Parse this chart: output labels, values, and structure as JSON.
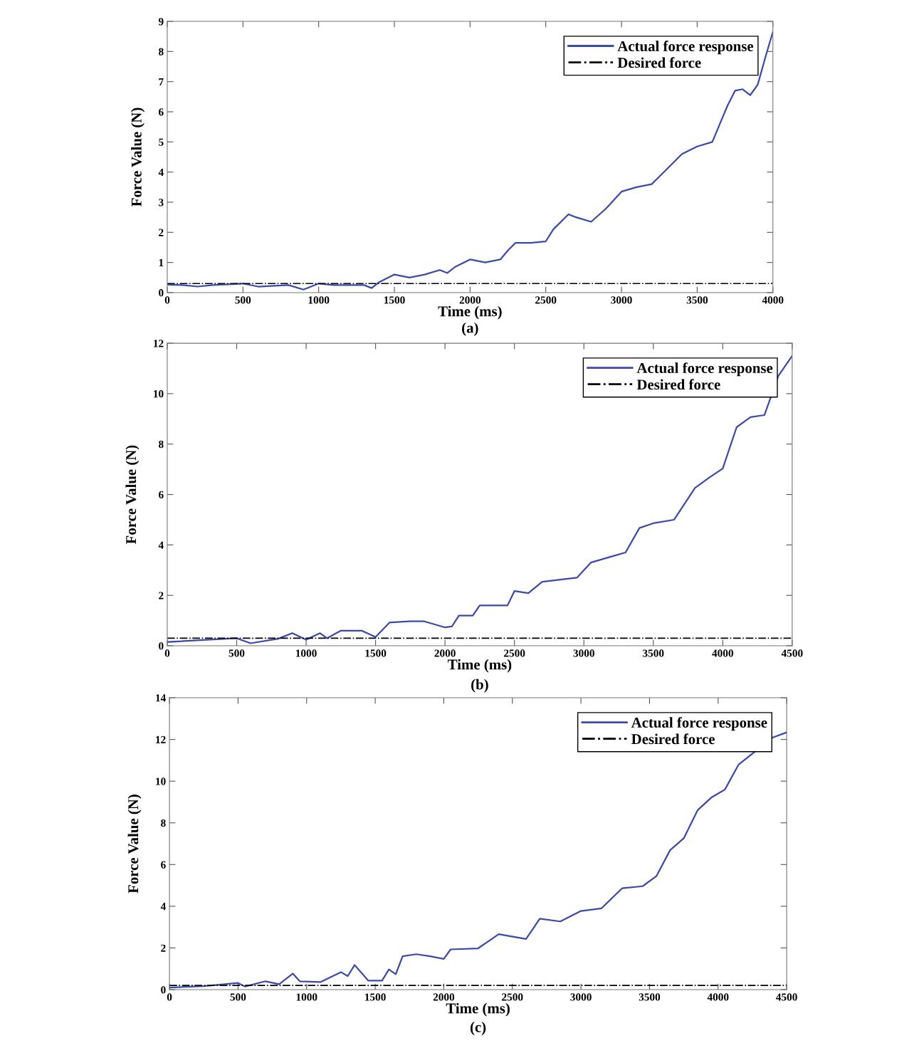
{
  "chart_data": [
    {
      "type": "line",
      "xlabel": "Time (ms)",
      "ylabel": "Force Value (N)",
      "annotations": [
        "(a)"
      ],
      "xlim": [
        0,
        4000
      ],
      "xticks": [
        0,
        500,
        1000,
        1500,
        2000,
        2500,
        3000,
        3500,
        4000
      ],
      "ylim": [
        0,
        9
      ],
      "yticks": [
        0,
        1,
        2,
        3,
        4,
        5,
        6,
        7,
        8,
        9
      ],
      "legend": "top right",
      "grid": false,
      "series": [
        {
          "name": "Actual force response",
          "color": "#3a4aa8",
          "line_style": "solid",
          "x": [
            0,
            100,
            200,
            300,
            500,
            600,
            800,
            900,
            1000,
            1100,
            1300,
            1350,
            1400,
            1500,
            1600,
            1700,
            1800,
            1850,
            1900,
            2000,
            2100,
            2200,
            2250,
            2300,
            2400,
            2500,
            2550,
            2650,
            2700,
            2800,
            2900,
            3000,
            3100,
            3200,
            3300,
            3400,
            3500,
            3600,
            3650,
            3700,
            3750,
            3800,
            3850,
            3900,
            3950,
            4000
          ],
          "values": [
            0.26,
            0.25,
            0.2,
            0.25,
            0.3,
            0.2,
            0.25,
            0.1,
            0.3,
            0.25,
            0.25,
            0.15,
            0.35,
            0.6,
            0.5,
            0.6,
            0.75,
            0.65,
            0.85,
            1.1,
            1.0,
            1.1,
            1.4,
            1.65,
            1.65,
            1.7,
            2.1,
            2.6,
            2.5,
            2.35,
            2.8,
            3.35,
            3.5,
            3.6,
            4.1,
            4.6,
            4.85,
            5.0,
            5.6,
            6.2,
            6.7,
            6.75,
            6.55,
            6.9,
            7.8,
            8.65
          ]
        },
        {
          "name": "Desired force",
          "color": "#000000",
          "line_style": "dashdot",
          "x": [
            0,
            4000
          ],
          "values": [
            0.3,
            0.3
          ]
        }
      ]
    },
    {
      "type": "line",
      "xlabel": "Time (ms)",
      "ylabel": "Force Value (N)",
      "annotations": [
        "(b)"
      ],
      "xlim": [
        0,
        4500
      ],
      "xticks": [
        0,
        500,
        1000,
        1500,
        2000,
        2500,
        3000,
        3500,
        4000,
        4500
      ],
      "ylim": [
        0,
        12
      ],
      "yticks": [
        0,
        2,
        4,
        6,
        8,
        10,
        12
      ],
      "legend": "top right",
      "grid": false,
      "series": [
        {
          "name": "Actual force response",
          "color": "#3a4aa8",
          "line_style": "solid",
          "x": [
            0,
            500,
            600,
            800,
            900,
            1000,
            1100,
            1150,
            1250,
            1400,
            1500,
            1600,
            1750,
            1850,
            2000,
            2050,
            2100,
            2200,
            2250,
            2450,
            2500,
            2600,
            2700,
            2950,
            3050,
            3200,
            3300,
            3400,
            3500,
            3650,
            3800,
            3900,
            4000,
            4100,
            4200,
            4300,
            4400,
            4500
          ],
          "values": [
            0.15,
            0.3,
            0.1,
            0.28,
            0.5,
            0.24,
            0.5,
            0.3,
            0.6,
            0.6,
            0.35,
            0.92,
            0.97,
            0.97,
            0.73,
            0.77,
            1.2,
            1.2,
            1.6,
            1.6,
            2.17,
            2.09,
            2.54,
            2.7,
            3.3,
            3.54,
            3.7,
            4.67,
            4.86,
            5.0,
            6.26,
            6.66,
            7.03,
            8.67,
            9.07,
            9.15,
            10.7,
            11.5
          ]
        },
        {
          "name": "Desired force",
          "color": "#000000",
          "line_style": "dashdot",
          "x": [
            0,
            4500
          ],
          "values": [
            0.3,
            0.3
          ]
        }
      ]
    },
    {
      "type": "line",
      "xlabel": "Time (ms)",
      "ylabel": "Force Value (N)",
      "annotations": [
        "(c)"
      ],
      "xlim": [
        0,
        4500
      ],
      "xticks": [
        0,
        500,
        1000,
        1500,
        2000,
        2500,
        3000,
        3500,
        4000,
        4500
      ],
      "ylim": [
        0,
        14
      ],
      "yticks": [
        0,
        2,
        4,
        6,
        8,
        10,
        12,
        14
      ],
      "legend": "top right",
      "grid": false,
      "series": [
        {
          "name": "Actual force response",
          "color": "#3a4aa8",
          "line_style": "solid",
          "x": [
            0,
            250,
            500,
            550,
            700,
            800,
            900,
            950,
            1100,
            1250,
            1300,
            1350,
            1450,
            1550,
            1600,
            1650,
            1700,
            1800,
            1900,
            2000,
            2050,
            2250,
            2350,
            2400,
            2600,
            2700,
            2850,
            3000,
            3150,
            3300,
            3450,
            3550,
            3650,
            3750,
            3850,
            3950,
            4050,
            4150,
            4400,
            4500
          ],
          "values": [
            0.1,
            0.17,
            0.32,
            0.15,
            0.4,
            0.26,
            0.77,
            0.4,
            0.36,
            0.84,
            0.65,
            1.18,
            0.43,
            0.43,
            0.97,
            0.74,
            1.6,
            1.7,
            1.6,
            1.47,
            1.93,
            1.98,
            2.43,
            2.66,
            2.43,
            3.4,
            3.27,
            3.77,
            3.9,
            4.86,
            4.96,
            5.44,
            6.69,
            7.26,
            8.6,
            9.21,
            9.6,
            10.8,
            12.1,
            12.34
          ]
        },
        {
          "name": "Desired force",
          "color": "#000000",
          "line_style": "dashdot",
          "x": [
            0,
            4500
          ],
          "values": [
            0.2,
            0.2
          ]
        }
      ]
    }
  ]
}
